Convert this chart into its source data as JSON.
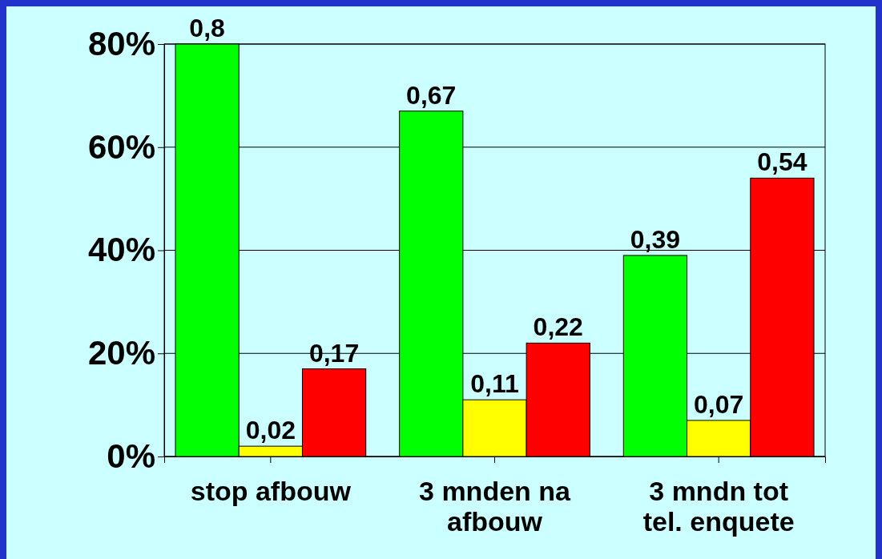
{
  "chart_data": {
    "type": "bar",
    "categories": [
      "stop afbouw",
      "3 mnden na afbouw",
      "3 mndn tot tel. enquete"
    ],
    "series": [
      {
        "color": "#00ff00",
        "values": [
          0.8,
          0.67,
          0.39
        ],
        "value_labels": [
          "0,8",
          "0,67",
          "0,39"
        ]
      },
      {
        "color": "#ffff00",
        "values": [
          0.02,
          0.11,
          0.07
        ],
        "value_labels": [
          "0,02",
          "0,11",
          "0,07"
        ]
      },
      {
        "color": "#ff0000",
        "values": [
          0.17,
          0.22,
          0.54
        ],
        "value_labels": [
          "0,17",
          "0,22",
          "0,54"
        ]
      }
    ],
    "ylim": [
      0,
      0.8
    ],
    "yticks": [
      {
        "value": 0,
        "label": "0%"
      },
      {
        "value": 0.2,
        "label": "20%"
      },
      {
        "value": 0.4,
        "label": "40%"
      },
      {
        "value": 0.6,
        "label": "60%"
      },
      {
        "value": 0.8,
        "label": "80%"
      }
    ],
    "grid": "y"
  }
}
